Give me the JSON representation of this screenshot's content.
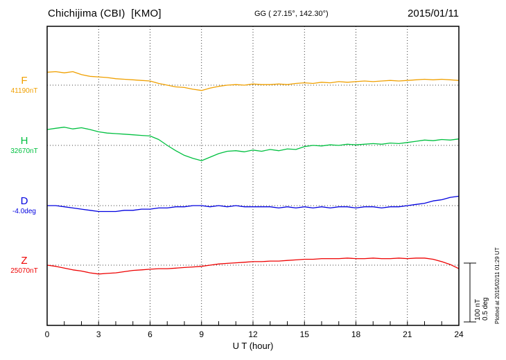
{
  "header": {
    "station_title": "Chichijima (CBI)  [KMO]",
    "coordinates": "GG ( 27.15°, 142.30°)",
    "date": "2015/01/11"
  },
  "x_axis": {
    "label": "U T (hour)",
    "tick_labels": [
      "0",
      "3",
      "6",
      "9",
      "12",
      "15",
      "18",
      "21",
      "24"
    ]
  },
  "scale_bar": {
    "nt_label": "100 nT",
    "deg_label": "0.5 deg"
  },
  "footer": {
    "plotted_at": "Plotted at 2015/02/11 01:29 UT"
  },
  "chart_data": {
    "type": "line",
    "title": "Chichijima (CBI) [KMO] geomagnetic variations F, H, D, Z on 2015/01/11",
    "xlabel": "U T (hour)",
    "xlim": [
      0,
      24
    ],
    "x_ticks": [
      0,
      3,
      6,
      9,
      12,
      15,
      18,
      21,
      24
    ],
    "x_start": 0,
    "x_step": 0.5,
    "grid": "dotted vertical lines every 3 hours; dotted horizontal baseline per component",
    "legend_position": "left margin (component letter + baseline value)",
    "series": [
      {
        "name": "F",
        "unit": "nT",
        "color": "#f0a000",
        "baseline": 41190,
        "baseline_label": "41190nT",
        "scale_per_division": 100,
        "values": [
          41212,
          41213,
          41211,
          41213,
          41208,
          41205,
          41204,
          41203,
          41201,
          41200,
          41199,
          41198,
          41197,
          41193,
          41190,
          41187,
          41186,
          41183,
          41181,
          41185,
          41188,
          41190,
          41191,
          41190,
          41192,
          41191,
          41191,
          41192,
          41191,
          41193,
          41194,
          41193,
          41195,
          41194,
          41196,
          41195,
          41196,
          41197,
          41196,
          41197,
          41198,
          41197,
          41198,
          41199,
          41200,
          41199,
          41200,
          41199,
          41198
        ]
      },
      {
        "name": "H",
        "unit": "nT",
        "color": "#00c040",
        "baseline": 32670,
        "baseline_label": "32670nT",
        "scale_per_division": 100,
        "values": [
          32697,
          32699,
          32701,
          32698,
          32700,
          32697,
          32693,
          32691,
          32690,
          32689,
          32688,
          32687,
          32686,
          32680,
          32670,
          32661,
          32653,
          32648,
          32644,
          32650,
          32656,
          32660,
          32661,
          32659,
          32662,
          32660,
          32663,
          32661,
          32664,
          32663,
          32668,
          32670,
          32669,
          32671,
          32670,
          32672,
          32671,
          32672,
          32673,
          32672,
          32674,
          32673,
          32675,
          32677,
          32679,
          32678,
          32680,
          32679,
          32681
        ]
      },
      {
        "name": "D",
        "unit": "deg",
        "color": "#0000e0",
        "baseline": -4.0,
        "baseline_label": "-4.0deg",
        "scale_per_division": 0.5,
        "values": [
          -4.0,
          -4.0,
          -4.01,
          -4.02,
          -4.03,
          -4.04,
          -4.05,
          -4.05,
          -4.05,
          -4.04,
          -4.04,
          -4.03,
          -4.03,
          -4.02,
          -4.02,
          -4.01,
          -4.01,
          -4.0,
          -4.0,
          -4.01,
          -4.0,
          -4.01,
          -4.0,
          -4.01,
          -4.01,
          -4.01,
          -4.01,
          -4.02,
          -4.01,
          -4.02,
          -4.01,
          -4.02,
          -4.01,
          -4.02,
          -4.01,
          -4.01,
          -4.02,
          -4.01,
          -4.01,
          -4.02,
          -4.01,
          -4.01,
          -4.0,
          -3.99,
          -3.98,
          -3.96,
          -3.95,
          -3.93,
          -3.92
        ]
      },
      {
        "name": "Z",
        "unit": "nT",
        "color": "#ee0000",
        "baseline": 25070,
        "baseline_label": "25070nT",
        "scale_per_division": 100,
        "values": [
          25070,
          25068,
          25065,
          25062,
          25060,
          25057,
          25055,
          25056,
          25057,
          25059,
          25061,
          25062,
          25063,
          25064,
          25064,
          25065,
          25066,
          25067,
          25068,
          25070,
          25072,
          25073,
          25074,
          25075,
          25076,
          25076,
          25077,
          25077,
          25078,
          25079,
          25080,
          25080,
          25081,
          25081,
          25081,
          25082,
          25081,
          25081,
          25082,
          25081,
          25081,
          25082,
          25081,
          25082,
          25082,
          25080,
          25076,
          25071,
          25064
        ]
      }
    ]
  }
}
